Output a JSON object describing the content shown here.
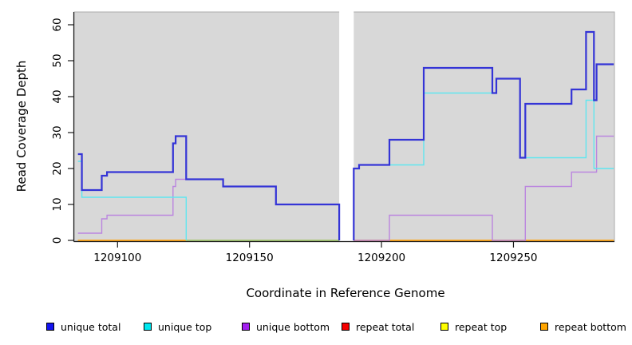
{
  "axes": {
    "y_label": "Read Coverage Depth",
    "x_label": "Coordinate in Reference Genome",
    "y_ticks": [
      {
        "label": "0",
        "value": 0
      },
      {
        "label": "10",
        "value": 10
      },
      {
        "label": "20",
        "value": 20
      },
      {
        "label": "30",
        "value": 30
      },
      {
        "label": "40",
        "value": 40
      },
      {
        "label": "50",
        "value": 50
      },
      {
        "label": "60",
        "value": 60
      }
    ],
    "x_ticks": [
      {
        "label": "1209100",
        "value": 1209100
      },
      {
        "label": "1209150",
        "value": 1209150
      },
      {
        "label": "1209200",
        "value": 1209200
      },
      {
        "label": "1209250",
        "value": 1209250
      }
    ]
  },
  "legend": [
    {
      "label": "unique total",
      "color": "#1414F0"
    },
    {
      "label": "unique top",
      "color": "#00E8F0"
    },
    {
      "label": "unique bottom",
      "color": "#A21FF0"
    },
    {
      "label": "repeat total",
      "color": "#F50000"
    },
    {
      "label": "repeat top",
      "color": "#FFFF00"
    },
    {
      "label": "repeat bottom",
      "color": "#FFA500"
    }
  ],
  "chart_data": {
    "type": "line",
    "subtype": "step-coverage",
    "title": "",
    "xlabel": "Coordinate in Reference Genome",
    "ylabel": "Read Coverage Depth",
    "xlim": [
      1209085,
      1209288
    ],
    "ylim": [
      0,
      62
    ],
    "grid": false,
    "plot_background": "#D8D8D8",
    "no_data_gap": [
      1209184,
      1209189.5
    ],
    "series": [
      {
        "id": "repeat-total",
        "label": "repeat total",
        "color": "#F50000",
        "width": 1.4,
        "segments": [
          [
            [
              1209085,
              0
            ],
            [
              1209184,
              0
            ]
          ],
          [
            [
              1209189.5,
              0
            ],
            [
              1209288,
              0
            ]
          ]
        ]
      },
      {
        "id": "repeat-top",
        "label": "repeat top",
        "color": "#FFFF00",
        "width": 1.4,
        "segments": [
          [
            [
              1209085,
              0
            ],
            [
              1209184,
              0
            ]
          ],
          [
            [
              1209189.5,
              0
            ],
            [
              1209288,
              0
            ]
          ]
        ]
      },
      {
        "id": "repeat-bottom",
        "label": "repeat bottom",
        "color": "#FFA520",
        "width": 1.6,
        "segments": [
          [
            [
              1209085,
              0
            ],
            [
              1209184,
              0
            ]
          ],
          [
            [
              1209189.5,
              0
            ],
            [
              1209288,
              0
            ]
          ]
        ]
      },
      {
        "id": "zero-overlap",
        "label": "",
        "color": "#8FCF8F",
        "width": 1.6,
        "segments": [
          [
            [
              1209126,
              0
            ],
            [
              1209184,
              0
            ]
          ]
        ]
      },
      {
        "id": "unique-bottom",
        "label": "unique bottom",
        "color": "#BB86DF",
        "width": 1.4,
        "segments": [
          [
            [
              1209085,
              2
            ],
            [
              1209094,
              6
            ],
            [
              1209096,
              7
            ],
            [
              1209121,
              15
            ],
            [
              1209122,
              17
            ],
            [
              1209140,
              15
            ],
            [
              1209160,
              10
            ],
            [
              1209184,
              0
            ]
          ],
          [
            [
              1209189.5,
              0
            ],
            [
              1209203,
              7
            ],
            [
              1209242,
              0
            ],
            [
              1209254.5,
              15
            ],
            [
              1209272,
              19
            ],
            [
              1209281.5,
              29
            ],
            [
              1209288,
              29
            ]
          ]
        ]
      },
      {
        "id": "unique-top",
        "label": "unique top",
        "color": "#5FE6EF",
        "width": 1.4,
        "segments": [
          [
            [
              1209085,
              22
            ],
            [
              1209086.5,
              12
            ],
            [
              1209126,
              0
            ]
          ],
          [
            [
              1209189.5,
              0
            ],
            [
              1209189.5,
              20
            ],
            [
              1209191.5,
              21
            ],
            [
              1209216,
              41
            ],
            [
              1209243.5,
              45
            ],
            [
              1209252.5,
              23
            ],
            [
              1209277.5,
              39
            ],
            [
              1209280.5,
              20
            ],
            [
              1209288,
              20
            ]
          ]
        ]
      },
      {
        "id": "unique-total",
        "label": "unique total",
        "color": "#3434D6",
        "width": 2.2,
        "segments": [
          [
            [
              1209085,
              24
            ],
            [
              1209086.5,
              14
            ],
            [
              1209094,
              18
            ],
            [
              1209096,
              19
            ],
            [
              1209121,
              27
            ],
            [
              1209122,
              29
            ],
            [
              1209126,
              17
            ],
            [
              1209140,
              15
            ],
            [
              1209160,
              10
            ],
            [
              1209184,
              0
            ]
          ],
          [
            [
              1209189.5,
              0
            ],
            [
              1209189.5,
              20
            ],
            [
              1209191.5,
              21
            ],
            [
              1209203,
              28
            ],
            [
              1209216,
              48
            ],
            [
              1209242,
              41
            ],
            [
              1209243.5,
              45
            ],
            [
              1209252.5,
              23
            ],
            [
              1209254.5,
              38
            ],
            [
              1209272,
              42
            ],
            [
              1209277.5,
              58
            ],
            [
              1209280.5,
              39
            ],
            [
              1209281.5,
              49
            ],
            [
              1209288,
              49
            ]
          ]
        ]
      }
    ]
  }
}
